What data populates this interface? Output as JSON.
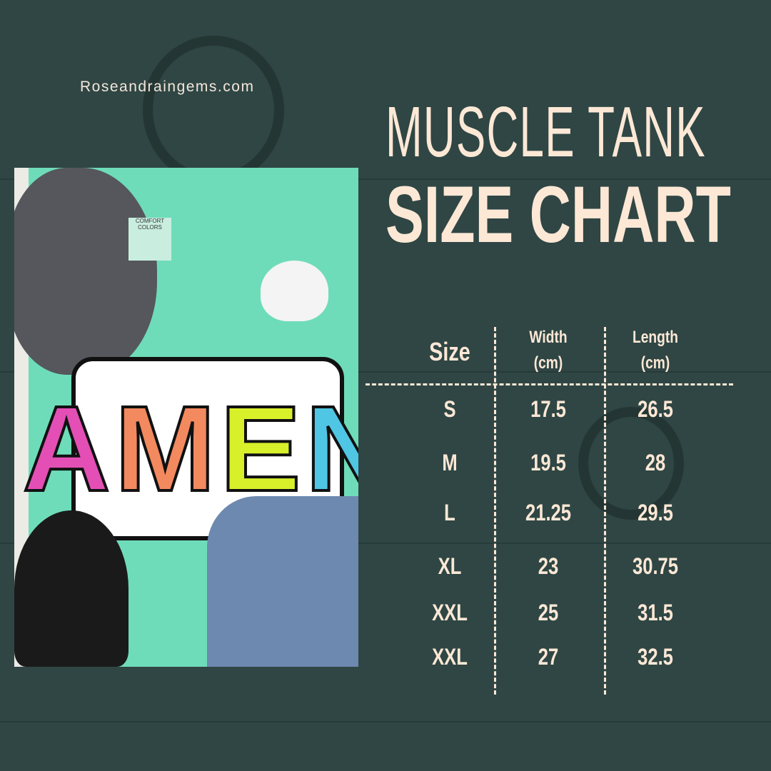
{
  "site": "Roseandraingems.com",
  "title": {
    "line1": "MUSCLE TANK",
    "line2": "SIZE CHART"
  },
  "photo": {
    "letters": [
      "A",
      "M",
      "E",
      "N"
    ],
    "letter_colors": [
      "#e44fb6",
      "#f3895f",
      "#d7f02a",
      "#4fc6e3"
    ],
    "label": "COMFORT COLORS"
  },
  "table": {
    "headers": [
      "Size",
      "Width\n(cm)",
      "Length\n(cm)"
    ],
    "rows": [
      {
        "size": "S",
        "width": "17.5",
        "length": "26.5"
      },
      {
        "size": "M",
        "width": "19.5",
        "length": "28"
      },
      {
        "size": "L",
        "width": "21.25",
        "length": "29.5"
      },
      {
        "size": "XL",
        "width": "23",
        "length": "30.75"
      },
      {
        "size": "XXL",
        "width": "25",
        "length": "31.5"
      },
      {
        "size": "XXL",
        "width": "27",
        "length": "32.5"
      }
    ]
  },
  "colors": {
    "background": "#2f4644",
    "text": "#fde8d6"
  }
}
